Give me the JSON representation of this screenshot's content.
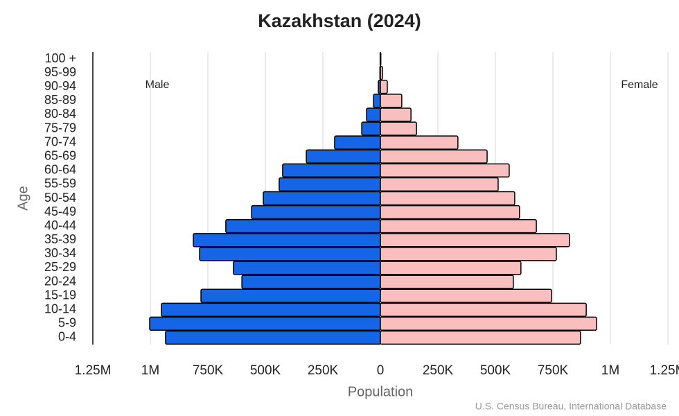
{
  "chart_data": {
    "type": "population-pyramid",
    "title": "Kazakhstan (2024)",
    "x_label": "Population",
    "y_label": "Age",
    "source": "U.S. Census Bureau, International Database",
    "categories": [
      "0-4",
      "5-9",
      "10-14",
      "15-19",
      "20-24",
      "25-29",
      "30-34",
      "35-39",
      "40-44",
      "45-49",
      "50-54",
      "55-59",
      "60-64",
      "65-69",
      "70-74",
      "75-79",
      "80-84",
      "85-89",
      "90-94",
      "95-99",
      "100 +"
    ],
    "series": [
      {
        "name": "Male",
        "color": "#1565e6",
        "values": [
          -934000,
          -1003000,
          -952000,
          -780000,
          -602000,
          -639000,
          -786000,
          -813000,
          -672000,
          -560000,
          -509000,
          -440000,
          -425000,
          -322000,
          -199000,
          -81000,
          -60000,
          -30000,
          -9000,
          -2000,
          -1000
        ]
      },
      {
        "name": "Female",
        "color": "#f9bfbf",
        "values": [
          870000,
          940000,
          895000,
          744000,
          578000,
          611000,
          765000,
          822000,
          678000,
          605000,
          584000,
          512000,
          560000,
          464000,
          337000,
          157000,
          133000,
          93000,
          30000,
          9000,
          2000
        ]
      }
    ],
    "xlim": [
      -1250000,
      1250000
    ],
    "xticks": [
      {
        "value": -1250000,
        "label": "1.25M"
      },
      {
        "value": -1000000,
        "label": "1M"
      },
      {
        "value": -750000,
        "label": "750K"
      },
      {
        "value": -500000,
        "label": "500K"
      },
      {
        "value": -250000,
        "label": "250K"
      },
      0,
      {
        "value": 250000,
        "label": "250K"
      },
      {
        "value": 500000,
        "label": "500K"
      },
      {
        "value": 750000,
        "label": "750K"
      },
      {
        "value": 1000000,
        "label": "1M"
      },
      {
        "value": 1250000,
        "label": "1.25M"
      }
    ],
    "grid": true
  }
}
